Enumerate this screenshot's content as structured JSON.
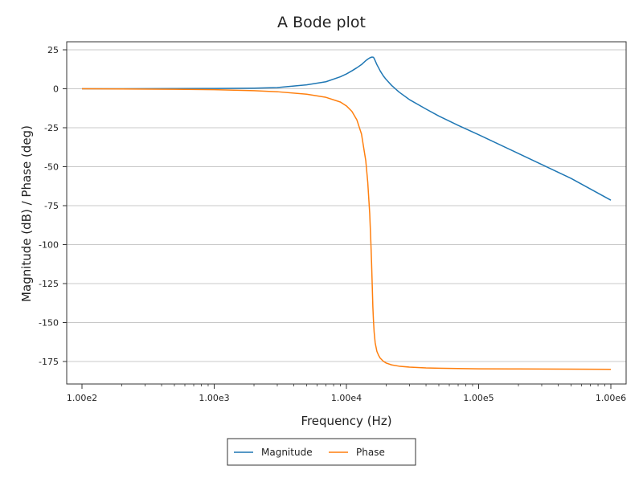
{
  "chart_data": {
    "type": "line",
    "title": "A Bode plot",
    "xlabel": "Frequency (Hz)",
    "ylabel": "Magnitude (dB) / Phase (deg)",
    "x_scale": "log",
    "xlim": [
      100,
      1000000
    ],
    "ylim": [
      -185,
      28
    ],
    "grid": "horizontal",
    "legend_position": "bottom-center",
    "x_ticks": [
      {
        "value": 100,
        "label": "1.00e2"
      },
      {
        "value": 1000,
        "label": "1.00e3"
      },
      {
        "value": 10000,
        "label": "1.00e4"
      },
      {
        "value": 100000,
        "label": "1.00e5"
      },
      {
        "value": 1000000,
        "label": "1.00e6"
      }
    ],
    "y_ticks": [
      {
        "value": 25,
        "label": "25"
      },
      {
        "value": 0,
        "label": "0"
      },
      {
        "value": -25,
        "label": "-25"
      },
      {
        "value": -50,
        "label": "-50"
      },
      {
        "value": -75,
        "label": "-75"
      },
      {
        "value": -100,
        "label": "-100"
      },
      {
        "value": -125,
        "label": "-125"
      },
      {
        "value": -150,
        "label": "-150"
      },
      {
        "value": -175,
        "label": "-175"
      }
    ],
    "series": [
      {
        "name": "Magnitude",
        "color": "#1f77b4",
        "x": [
          100,
          200,
          500,
          1000,
          2000,
          3000,
          5000,
          7000,
          9000,
          10000,
          11000,
          12000,
          13000,
          14000,
          14500,
          15000,
          15500,
          15800,
          16000,
          16200,
          16500,
          17000,
          17500,
          18000,
          19000,
          20000,
          22000,
          25000,
          30000,
          40000,
          50000,
          70000,
          100000,
          200000,
          500000,
          1000000
        ],
        "y": [
          0,
          0,
          0.1,
          0.2,
          0.4,
          0.8,
          2.5,
          4.5,
          7.7,
          9.5,
          11.5,
          13.5,
          15.5,
          18,
          19,
          19.8,
          20.3,
          20.3,
          20.2,
          19.5,
          18,
          15.5,
          13.5,
          11.5,
          8.3,
          5.9,
          2.1,
          -2.1,
          -7,
          -13,
          -17.5,
          -23.5,
          -29.5,
          -41.5,
          -57.5,
          -71.5
        ]
      },
      {
        "name": "Phase",
        "color": "#ff7f0e",
        "x": [
          100,
          200,
          500,
          1000,
          2000,
          3000,
          5000,
          7000,
          9000,
          10000,
          11000,
          12000,
          13000,
          14000,
          14500,
          15000,
          15300,
          15500,
          15700,
          15850,
          16000,
          16200,
          16500,
          17000,
          17500,
          18000,
          19000,
          20000,
          22000,
          25000,
          30000,
          40000,
          50000,
          70000,
          100000,
          200000,
          500000,
          1000000
        ],
        "y": [
          0,
          -0.1,
          -0.3,
          -0.6,
          -1.2,
          -1.9,
          -3.5,
          -5.5,
          -8.5,
          -11,
          -14.5,
          -20,
          -29,
          -46,
          -60,
          -80,
          -98,
          -112,
          -128,
          -140,
          -148,
          -156,
          -163,
          -168.5,
          -171,
          -172.8,
          -174.8,
          -176,
          -177.2,
          -178,
          -178.6,
          -179.1,
          -179.3,
          -179.5,
          -179.7,
          -179.8,
          -179.9,
          -180
        ]
      }
    ]
  }
}
